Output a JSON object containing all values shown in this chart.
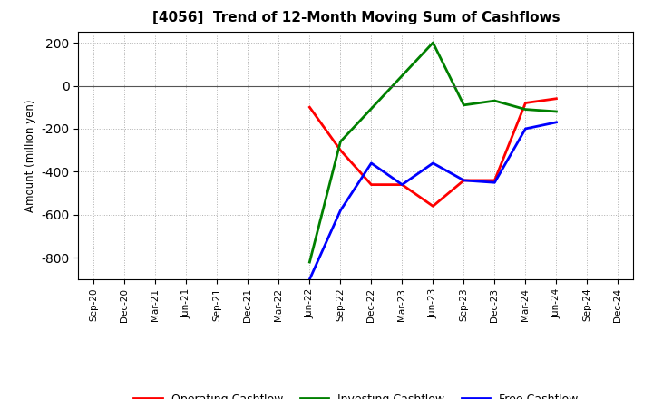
{
  "title": "[4056]  Trend of 12-Month Moving Sum of Cashflows",
  "ylabel": "Amount (million yen)",
  "ylim": [
    -900,
    250
  ],
  "yticks": [
    -800,
    -600,
    -400,
    -200,
    0,
    200
  ],
  "background_color": "#ffffff",
  "grid_color": "#b0b0b0",
  "x_labels": [
    "Sep-20",
    "Dec-20",
    "Mar-21",
    "Jun-21",
    "Sep-21",
    "Dec-21",
    "Mar-22",
    "Jun-22",
    "Sep-22",
    "Dec-22",
    "Mar-23",
    "Jun-23",
    "Sep-23",
    "Dec-23",
    "Mar-24",
    "Jun-24",
    "Sep-24",
    "Dec-24"
  ],
  "operating": {
    "x_indices": [
      7,
      8,
      9,
      10,
      11,
      12,
      13,
      14,
      15
    ],
    "y_values": [
      -100,
      -300,
      -460,
      -460,
      -560,
      -440,
      -440,
      -80,
      -60
    ],
    "color": "#ff0000",
    "label": "Operating Cashflow"
  },
  "investing": {
    "x_indices": [
      7,
      8,
      11,
      12,
      13,
      14,
      15
    ],
    "y_values": [
      -820,
      -260,
      200,
      -90,
      -70,
      -110,
      -120
    ],
    "color": "#008000",
    "label": "Investing Cashflow"
  },
  "free": {
    "x_indices": [
      7,
      8,
      9,
      10,
      11,
      12,
      13,
      14,
      15
    ],
    "y_values": [
      -900,
      -580,
      -360,
      -460,
      -360,
      -440,
      -450,
      -200,
      -170
    ],
    "color": "#0000ff",
    "label": "Free Cashflow"
  }
}
